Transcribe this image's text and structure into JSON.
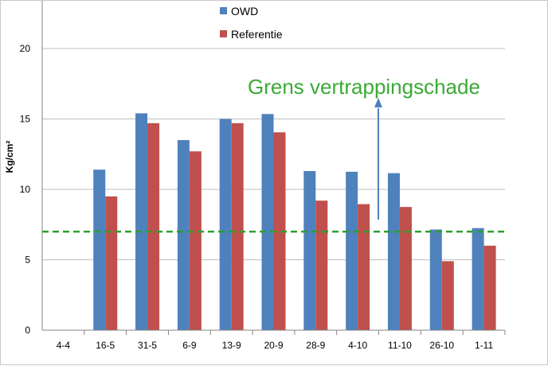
{
  "chart_data": {
    "type": "bar",
    "categories": [
      "4-4",
      "16-5",
      "31-5",
      "6-9",
      "13-9",
      "20-9",
      "28-9",
      "4-10",
      "11-10",
      "26-10",
      "1-11"
    ],
    "series": [
      {
        "name": "OWD",
        "color": "#4f81bd",
        "values": [
          0,
          11.4,
          15.4,
          13.5,
          15.0,
          15.35,
          11.3,
          11.25,
          11.15,
          7.15,
          7.25
        ]
      },
      {
        "name": "Referentie",
        "color": "#c0504d",
        "values": [
          0,
          9.5,
          14.7,
          12.7,
          14.7,
          14.05,
          9.2,
          8.95,
          8.75,
          4.9,
          6.0
        ]
      }
    ],
    "ylabel": "Kg/cm²",
    "ylim": [
      0,
      20
    ],
    "yticks": [
      0,
      5,
      10,
      15,
      20
    ],
    "grid": true,
    "legend_position": "top",
    "threshold": {
      "value": 7.0,
      "color": "#2ca02c",
      "style": "dashed"
    },
    "annotation": {
      "text": "Grens vertrappingschade",
      "color": "#3aaa35",
      "arrow_color": "#4f81bd"
    }
  }
}
